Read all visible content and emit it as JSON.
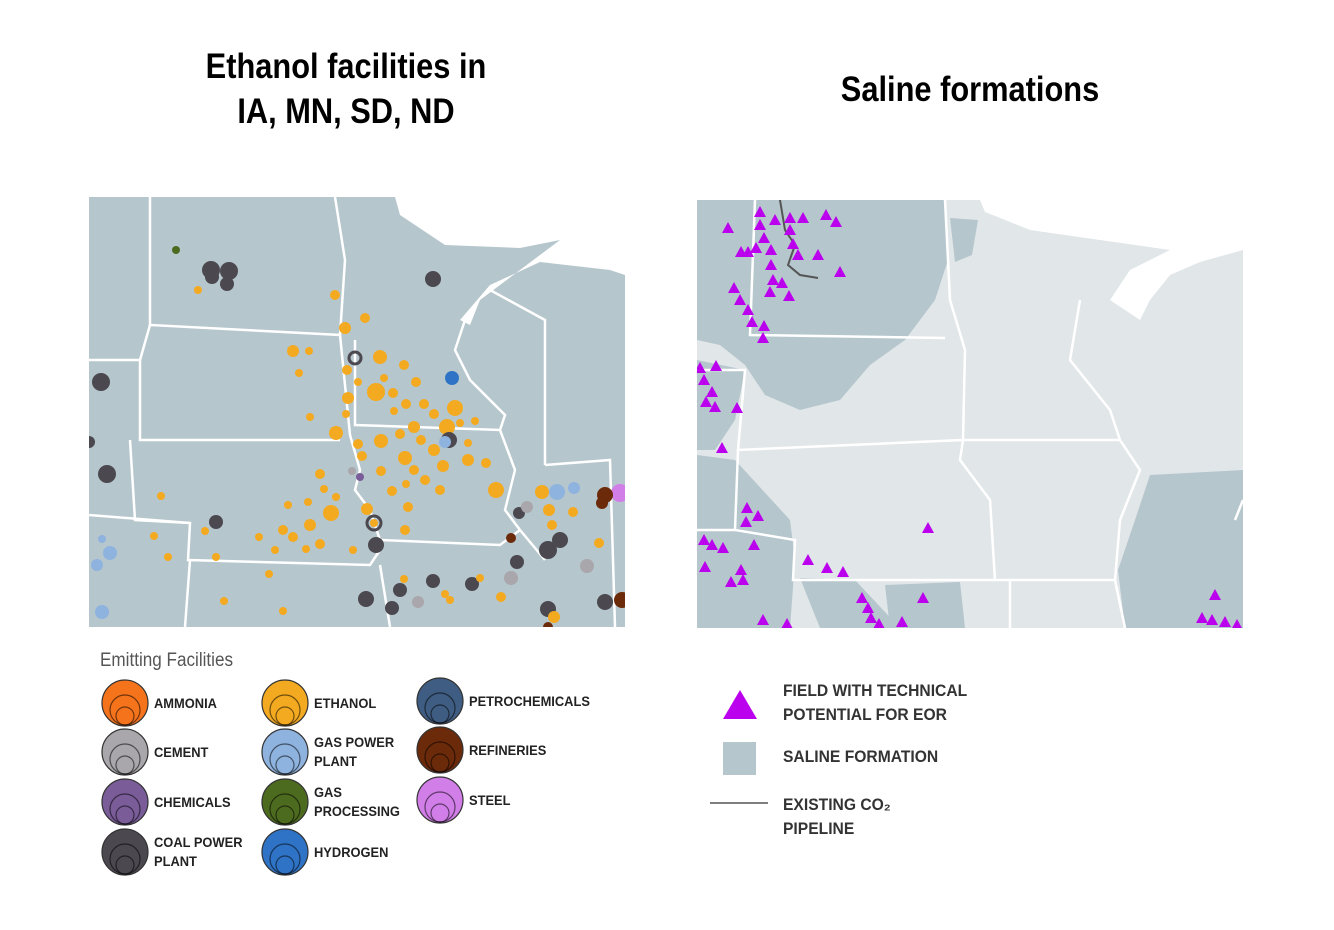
{
  "left": {
    "title_lines": [
      "Ethanol facilities in",
      "IA, MN, SD, ND"
    ],
    "legend": {
      "title": "Emitting Facilities",
      "items": [
        {
          "lines": [
            "AMMONIA"
          ],
          "color": "#f5731b"
        },
        {
          "lines": [
            "CEMENT"
          ],
          "color": "#a9a7ab"
        },
        {
          "lines": [
            "CHEMICALS"
          ],
          "color": "#7a5c99"
        },
        {
          "lines": [
            "COAL POWER",
            "PLANT"
          ],
          "color": "#4b484f"
        },
        {
          "lines": [
            "ETHANOL"
          ],
          "color": "#f4aa20"
        },
        {
          "lines": [
            "GAS POWER",
            "PLANT"
          ],
          "color": "#8fb3df"
        },
        {
          "lines": [
            "GAS",
            "PROCESSING"
          ],
          "color": "#4d6b1f"
        },
        {
          "lines": [
            "HYDROGEN"
          ],
          "color": "#2f73c6"
        },
        {
          "lines": [
            "PETROCHEMICALS"
          ],
          "color": "#3f5d82"
        },
        {
          "lines": [
            "REFINERIES"
          ],
          "color": "#6b2a0a"
        },
        {
          "lines": [
            "STEEL"
          ],
          "color": "#d17ee8"
        }
      ]
    }
  },
  "right": {
    "title_lines": [
      "Saline formations"
    ],
    "legend": {
      "items": [
        {
          "lines": [
            "FIELD WITH TECHNICAL",
            "POTENTIAL FOR EOR"
          ],
          "color": "#bb00ee"
        },
        {
          "lines": [
            "SALINE FORMATION"
          ],
          "color": "#b5c6cc"
        },
        {
          "lines": [
            "EXISTING CO₂",
            "PIPELINE"
          ],
          "color": "#555555"
        }
      ]
    }
  }
}
